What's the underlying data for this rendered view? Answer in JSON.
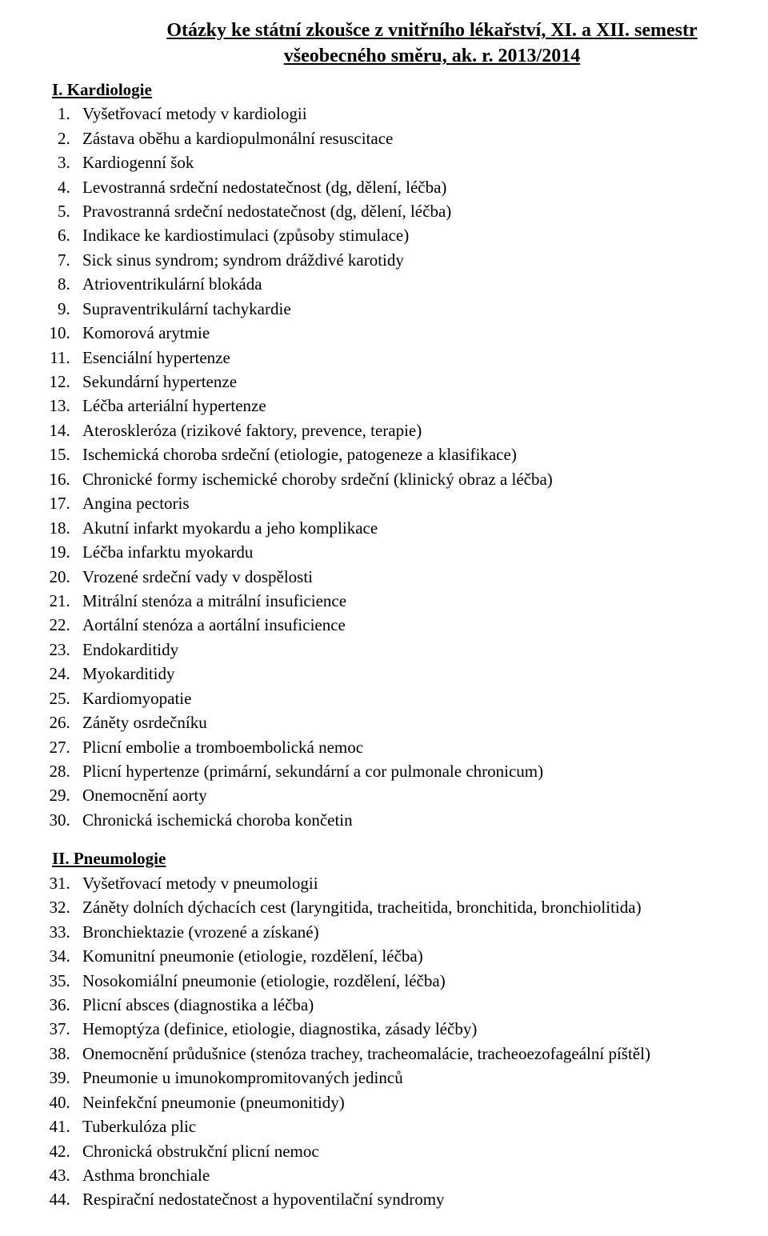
{
  "title": {
    "line1": "Otázky ke státní zkoušce z vnitřního lékařství, XI. a XII. semestr",
    "line2": "všeobecného směru, ak. r. 2013/2014"
  },
  "sections": [
    {
      "heading": "I. Kardiologie",
      "start": 1,
      "items": [
        "Vyšetřovací metody v kardiologii",
        "Zástava oběhu a kardiopulmonální resuscitace",
        "Kardiogenní šok",
        "Levostranná srdeční nedostatečnost (dg, dělení, léčba)",
        "Pravostranná srdeční nedostatečnost (dg, dělení, léčba)",
        "Indikace ke kardiostimulaci (způsoby stimulace)",
        "Sick sinus syndrom; syndrom dráždivé karotidy",
        "Atrioventrikulární blokáda",
        "Supraventrikulární tachykardie",
        "Komorová arytmie",
        "Esenciální hypertenze",
        "Sekundární hypertenze",
        "Léčba arteriální hypertenze",
        "Ateroskleróza (rizikové faktory, prevence, terapie)",
        "Ischemická choroba srdeční (etiologie, patogeneze a klasifikace)",
        "Chronické formy ischemické choroby srdeční (klinický obraz a léčba)",
        "Angina pectoris",
        "Akutní infarkt myokardu a jeho komplikace",
        "Léčba infarktu myokardu",
        "Vrozené srdeční vady v dospělosti",
        "Mitrální stenóza a mitrální insuficience",
        "Aortální stenóza a aortální insuficience",
        "Endokarditidy",
        "Myokarditidy",
        "Kardiomyopatie",
        "Záněty osrdečníku",
        "Plicní embolie a tromboembolická nemoc",
        "Plicní hypertenze (primární, sekundární a cor pulmonale chronicum)",
        "Onemocnění aorty",
        "Chronická ischemická choroba končetin"
      ]
    },
    {
      "heading": "II. Pneumologie",
      "start": 31,
      "items": [
        "Vyšetřovací metody v pneumologii",
        "Záněty dolních dýchacích cest (laryngitida, tracheitida, bronchitida, bronchiolitida)",
        "Bronchiektazie (vrozené a získané)",
        "Komunitní pneumonie (etiologie, rozdělení, léčba)",
        "Nosokomiální pneumonie (etiologie, rozdělení, léčba)",
        "Plicní absces (diagnostika a léčba)",
        "Hemoptýza (definice, etiologie, diagnostika, zásady léčby)",
        "Onemocnění průdušnice (stenóza trachey, tracheomalácie, tracheoezofageální píštěl)",
        "Pneumonie u imunokompromitovaných jedinců",
        "Neinfekční pneumonie (pneumonitidy)",
        "Tuberkulóza plic",
        "Chronická obstrukční plicní nemoc",
        "Asthma bronchiale",
        "Respirační nedostatečnost a hypoventilační syndromy"
      ]
    }
  ]
}
